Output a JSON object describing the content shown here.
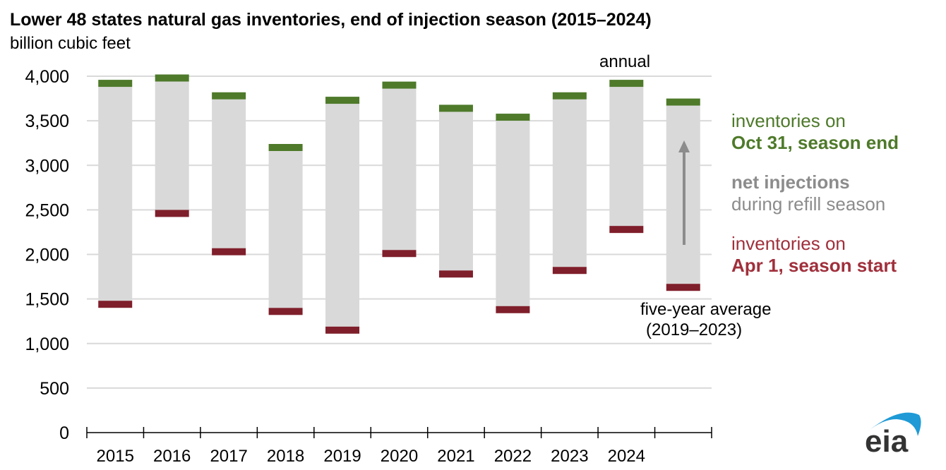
{
  "title": "Lower 48 states natural gas inventories, end of injection season (2015–2024)",
  "subtitle": "billion cubic feet",
  "colors": {
    "oct31": "#4e7a2a",
    "apr1": "#7f1f2b",
    "injection": "#d9d9d9",
    "grid": "#d9d9d9",
    "arrow": "#8c8c8c",
    "logo_arc": "#1f9ad6",
    "logo_text": "#333333"
  },
  "legend": {
    "oct_line1": "inventories on",
    "oct_line2": "Oct 31, season end",
    "inj_line1": "net injections",
    "inj_line2": "during refill season",
    "apr_line1": "inventories on",
    "apr_line2": "Apr 1, season start"
  },
  "annotations": {
    "annual": "annual",
    "five_year_line1": "five-year average",
    "five_year_line2": "(2019–2023)"
  },
  "logo": "eia",
  "chart_data": {
    "type": "floating-bar",
    "title": "Lower 48 states natural gas inventories, end of injection season (2015–2024)",
    "ylabel": "billion cubic feet",
    "ylim": [
      0,
      4000
    ],
    "yticks": [
      0,
      500,
      1000,
      1500,
      2000,
      2500,
      3000,
      3500,
      4000
    ],
    "ytick_labels": [
      "0",
      "500",
      "1,000",
      "1,500",
      "2,000",
      "2,500",
      "3,000",
      "3,500",
      "4,000"
    ],
    "grid": true,
    "legend_placement": "right",
    "categories": [
      "2015",
      "2016",
      "2017",
      "2018",
      "2019",
      "2020",
      "2021",
      "2022",
      "2023",
      "2024",
      ""
    ],
    "series": [
      {
        "name": "inventories on Oct 31, season end",
        "values": [
          3920,
          3980,
          3780,
          3200,
          3730,
          3900,
          3640,
          3540,
          3780,
          3920,
          3710
        ]
      },
      {
        "name": "inventories on Apr 1, season start",
        "values": [
          1440,
          2460,
          2030,
          1360,
          1150,
          2010,
          1780,
          1380,
          1820,
          2280,
          1630
        ]
      }
    ]
  }
}
